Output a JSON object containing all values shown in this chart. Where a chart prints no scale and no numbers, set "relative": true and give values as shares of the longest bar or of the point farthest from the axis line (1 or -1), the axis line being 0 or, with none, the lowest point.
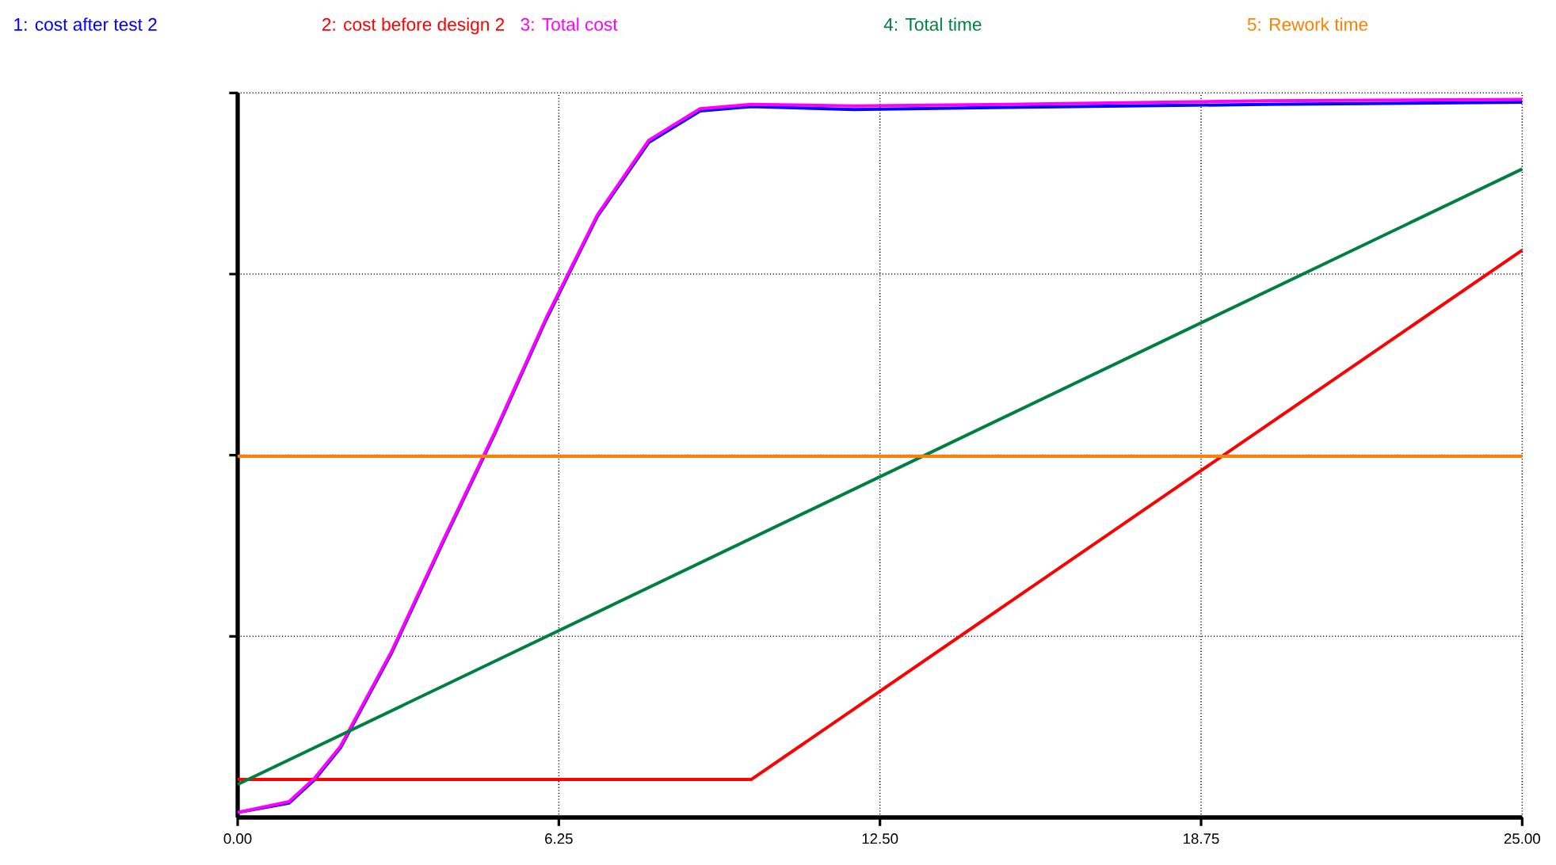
{
  "chart_data": {
    "type": "line",
    "relative": true,
    "legend": "top",
    "grid": true,
    "marker": "none",
    "line_style": "solid",
    "xlim": [
      0,
      25
    ],
    "xticks": [
      {
        "value": 0,
        "label": "0.00"
      },
      {
        "value": 6.25,
        "label": "6.25"
      },
      {
        "value": 12.5,
        "label": "12.50"
      },
      {
        "value": 18.75,
        "label": "18.75"
      },
      {
        "value": 25,
        "label": "25.00"
      }
    ],
    "series": [
      {
        "name": "1: cost after test 2",
        "color": "#0000ff",
        "x": [
          0,
          1,
          1.5,
          2,
          3,
          4,
          5,
          6,
          7,
          8,
          9,
          10,
          12,
          15,
          20,
          25
        ],
        "values": [
          0.007,
          0.02,
          0.053,
          0.097,
          0.23,
          0.384,
          0.534,
          0.693,
          0.837,
          0.94,
          0.984,
          0.99,
          0.986,
          0.989,
          0.993,
          0.996
        ]
      },
      {
        "name": "2: cost before design 2",
        "color": "#ff0000",
        "x": [
          0,
          10,
          18.75,
          25
        ],
        "values": [
          0.053,
          0.053,
          0.483,
          0.79
        ]
      },
      {
        "name": "3: Total cost",
        "color": "#ff00ff",
        "x": [
          0,
          1,
          1.5,
          2,
          3,
          4,
          5,
          6,
          7,
          8,
          9,
          10,
          12,
          15,
          20,
          25
        ],
        "values": [
          0.007,
          0.022,
          0.055,
          0.099,
          0.232,
          0.386,
          0.536,
          0.695,
          0.839,
          0.943,
          0.987,
          0.993,
          0.991,
          0.993,
          0.998,
          1
        ]
      },
      {
        "name": "4: Total time",
        "color": "#008040",
        "x": [
          0,
          25
        ],
        "values": [
          0.046,
          0.903
        ]
      },
      {
        "name": "5: Rework time",
        "color": "#ff8000",
        "x": [
          0,
          25
        ],
        "values": [
          0.503,
          0.503
        ]
      }
    ]
  }
}
